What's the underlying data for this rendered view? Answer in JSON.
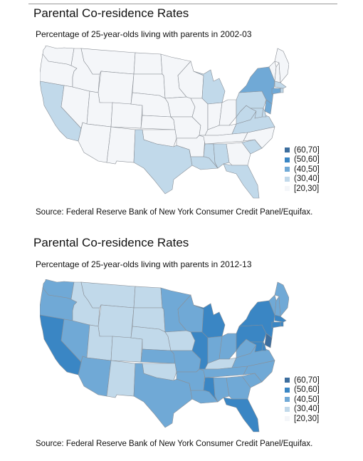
{
  "colors": {
    "(60,70]": "#3d6e9e",
    "(50,60]": "#3a86c4",
    "(40,50]": "#70a9d6",
    "(30,40]": "#c1d9ea",
    "[20,30]": "#f4f6f9"
  },
  "legend": [
    "(60,70]",
    "(50,60]",
    "(40,50]",
    "(30,40]",
    "[20,30]"
  ],
  "maps": [
    {
      "title": "Parental Co-residence Rates",
      "subtitle": "Percentage of 25-year-olds living with parents in 2002-03",
      "source": "Source: Federal Reserve Bank of New York Consumer Credit Panel/Equifax.",
      "states": {
        "WA": "[20,30]",
        "OR": "[20,30]",
        "CA": "(30,40]",
        "NV": "[20,30]",
        "ID": "[20,30]",
        "MT": "[20,30]",
        "WY": "[20,30]",
        "UT": "[20,30]",
        "AZ": "[20,30]",
        "CO": "[20,30]",
        "NM": "[20,30]",
        "ND": "[20,30]",
        "SD": "[20,30]",
        "NE": "[20,30]",
        "KS": "[20,30]",
        "OK": "[20,30]",
        "TX": "(30,40]",
        "MN": "[20,30]",
        "IA": "[20,30]",
        "MO": "[20,30]",
        "AR": "[20,30]",
        "LA": "(30,40]",
        "WI": "[20,30]",
        "IL": "[20,30]",
        "MI": "(30,40]",
        "IN": "[20,30]",
        "OH": "[20,30]",
        "KY": "[20,30]",
        "TN": "[20,30]",
        "MS": "(30,40]",
        "AL": "(30,40]",
        "GA": "[20,30]",
        "FL": "(30,40]",
        "SC": "(30,40]",
        "NC": "[20,30]",
        "VA": "(30,40]",
        "WV": "(30,40]",
        "PA": "(30,40]",
        "NY": "(40,50]",
        "VT": "[20,30]",
        "NH": "[20,30]",
        "ME": "[20,30]",
        "MA": "(30,40]",
        "RI": "(30,40]",
        "CT": "(40,50]",
        "NJ": "(40,50]",
        "DE": "(30,40]",
        "MD": "(30,40]"
      }
    },
    {
      "title": "Parental Co-residence Rates",
      "subtitle": "Percentage of 25-year-olds living with parents in 2012-13",
      "source": "Source: Federal Reserve Bank of New York Consumer Credit Panel/Equifax.",
      "states": {
        "WA": "(40,50]",
        "OR": "(40,50]",
        "CA": "(50,60]",
        "NV": "(40,50]",
        "ID": "(30,40]",
        "MT": "(30,40]",
        "WY": "(30,40]",
        "UT": "(30,40]",
        "AZ": "(40,50]",
        "CO": "(30,40]",
        "NM": "(30,40]",
        "ND": "(30,40]",
        "SD": "(30,40]",
        "NE": "(30,40]",
        "KS": "(40,50]",
        "OK": "(30,40]",
        "TX": "(40,50]",
        "MN": "(40,50]",
        "IA": "(30,40]",
        "MO": "(40,50]",
        "AR": "(40,50]",
        "LA": "(40,50]",
        "WI": "(40,50]",
        "IL": "(50,60]",
        "MI": "(50,60]",
        "IN": "(40,50]",
        "OH": "(40,50]",
        "KY": "(30,40]",
        "TN": "(40,50]",
        "MS": "(50,60]",
        "AL": "(40,50]",
        "GA": "(40,50]",
        "FL": "(50,60]",
        "SC": "(40,50]",
        "NC": "(40,50]",
        "VA": "(40,50]",
        "WV": "(40,50]",
        "PA": "(50,60]",
        "NY": "(50,60]",
        "VT": "(40,50]",
        "NH": "(40,50]",
        "ME": "(40,50]",
        "MA": "(50,60]",
        "RI": "(50,60]",
        "CT": "(50,60]",
        "NJ": "(60,70]",
        "DE": "(50,60]",
        "MD": "(50,60]"
      }
    }
  ]
}
